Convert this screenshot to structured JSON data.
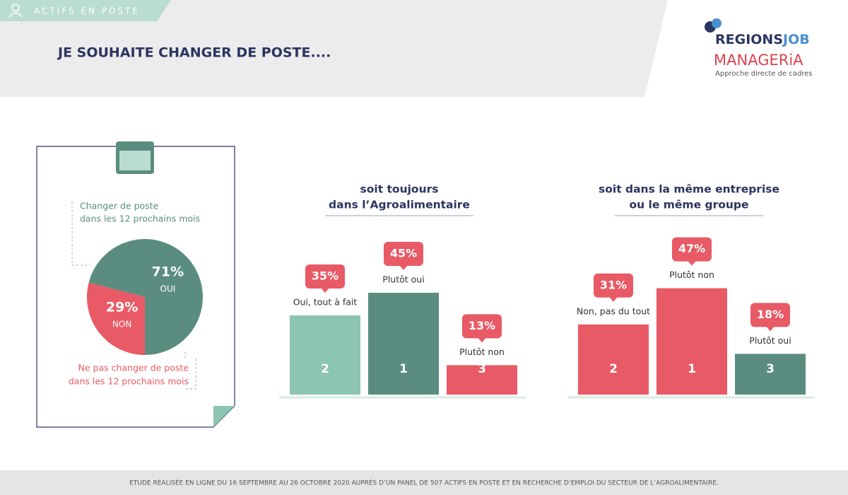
{
  "header": {
    "tag": "ACTIFS EN POSTE",
    "title": "JE SOUHAITE CHANGER DE POSTE....",
    "logo_main": "REGIONS",
    "logo_accent": "JOB",
    "logo2": "MANAGERiA",
    "logo2_sub": "Approche directe de cadres"
  },
  "chart_data": [
    {
      "type": "pie",
      "categories": [
        "OUI",
        "NON"
      ],
      "values": [
        71,
        29
      ],
      "value_labels": [
        "71%",
        "29%"
      ],
      "colors": [
        "#5a8d80",
        "#e85a65"
      ],
      "annotations": [
        [
          "Changer de poste",
          "dans les 12 prochains mois"
        ],
        [
          "Ne pas changer de poste",
          "dans les 12 prochains mois"
        ]
      ]
    },
    {
      "type": "bar",
      "title": [
        "soit toujours",
        "dans l’Agroalimentaire"
      ],
      "categories": [
        "Oui, tout à fait",
        "Plutôt oui",
        "Plutôt non"
      ],
      "values": [
        35,
        45,
        13
      ],
      "value_labels": [
        "35%",
        "45%",
        "13%"
      ],
      "ranks": [
        2,
        1,
        3
      ],
      "colors": [
        "#8cc5b0",
        "#5a8d80",
        "#e85a65"
      ]
    },
    {
      "type": "bar",
      "title": [
        "soit dans la même entreprise",
        "ou le même groupe"
      ],
      "categories": [
        "Non, pas du tout",
        "Plutôt non",
        "Plutôt oui"
      ],
      "values": [
        31,
        47,
        18
      ],
      "value_labels": [
        "31%",
        "47%",
        "18%"
      ],
      "ranks": [
        2,
        1,
        3
      ],
      "colors": [
        "#e85a65",
        "#e85a65",
        "#5a8d80"
      ]
    }
  ],
  "footer": "ETUDE RÉALISÉE EN LIGNE DU 16 SEPTEMBRE AU 26 OCTOBRE 2020 AUPRÈS D’UN PANEL DE 507 ACTIFS EN POSTE ET EN RECHERCHE D’EMPLOI DU SECTEUR DE L’AGROALIMENTAIRE."
}
